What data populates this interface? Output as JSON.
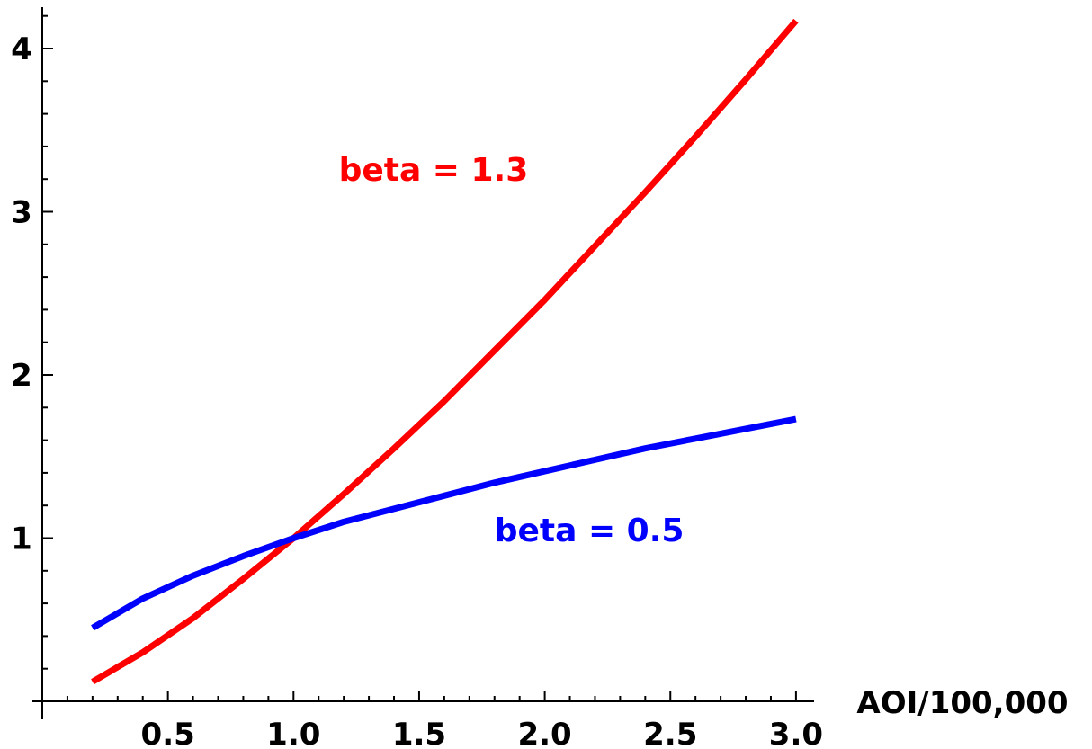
{
  "chart_data": {
    "type": "line",
    "title": "",
    "xlabel": "AOI/100,000",
    "ylabel": "",
    "xlim": [
      0,
      3.0
    ],
    "ylim": [
      0,
      4.2
    ],
    "grid": false,
    "xticks": [
      "0.5",
      "1.0",
      "1.5",
      "2.0",
      "2.5",
      "3.0"
    ],
    "yticks": [
      "1",
      "2",
      "3",
      "4"
    ],
    "series": [
      {
        "name": "beta = 1.3",
        "color": "#ff0000",
        "x": [
          0.2,
          0.4,
          0.6,
          0.8,
          1.0,
          1.2,
          1.4,
          1.6,
          1.8,
          2.0,
          2.2,
          2.4,
          2.6,
          2.8,
          3.0
        ],
        "y": [
          0.12,
          0.3,
          0.51,
          0.75,
          1.0,
          1.27,
          1.55,
          1.84,
          2.15,
          2.46,
          2.79,
          3.12,
          3.46,
          3.81,
          4.17
        ]
      },
      {
        "name": "beta = 0.5",
        "color": "#0000ff",
        "x": [
          0.2,
          0.4,
          0.6,
          0.8,
          1.0,
          1.2,
          1.4,
          1.6,
          1.8,
          2.0,
          2.2,
          2.4,
          2.6,
          2.8,
          3.0
        ],
        "y": [
          0.45,
          0.63,
          0.77,
          0.89,
          1.0,
          1.1,
          1.18,
          1.26,
          1.34,
          1.41,
          1.48,
          1.55,
          1.61,
          1.67,
          1.73
        ]
      }
    ],
    "annotations": [
      {
        "text": "beta = 1.3",
        "x": 1.18,
        "y": 3.19,
        "color": "#ff0000"
      },
      {
        "text": "beta = 0.5",
        "x": 1.8,
        "y": 0.98,
        "color": "#0000ff"
      }
    ]
  }
}
